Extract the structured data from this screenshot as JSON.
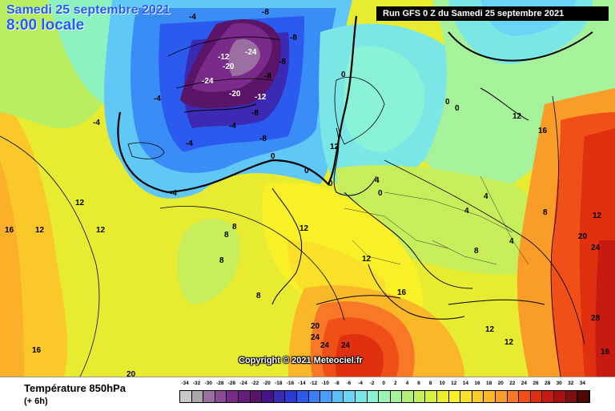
{
  "header": {
    "date_line": "Samedi 25 septembre 2021",
    "time_line": "8:00 locale",
    "run_info": "Run GFS 0 Z du Samedi 25 septembre 2021"
  },
  "copyright": "Copyright © 2021 Meteociel.fr",
  "footer": {
    "parameter_title": "Température 850hPa",
    "parameter_subtitle": "(+ 6h)"
  },
  "scale": {
    "labels": [
      "-34",
      "-32",
      "-30",
      "-28",
      "-26",
      "-24",
      "-22",
      "-20",
      "-18",
      "-16",
      "-14",
      "-12",
      "-10",
      "-8",
      "-6",
      "-4",
      "-2",
      "0",
      "2",
      "4",
      "6",
      "8",
      "10",
      "12",
      "14",
      "16",
      "18",
      "20",
      "22",
      "24",
      "26",
      "28",
      "30",
      "32",
      "34"
    ],
    "colors": [
      "#c8c8c8",
      "#a8a8a8",
      "#9a6ea0",
      "#8a4a96",
      "#7a2a8a",
      "#62207a",
      "#5a1468",
      "#46148a",
      "#3a2ab4",
      "#2a3ad2",
      "#2a5aee",
      "#3a7ef6",
      "#4a9efa",
      "#5ac0fa",
      "#6ad6f6",
      "#7ae6e6",
      "#8af2d6",
      "#9af6b6",
      "#a6f29a",
      "#b6ee7a",
      "#c6ee5a",
      "#d8f040",
      "#eaf030",
      "#faf028",
      "#fae028",
      "#facc28",
      "#fab828",
      "#fa9c28",
      "#f87828",
      "#f05018",
      "#e03010",
      "#c81a10",
      "#a81010",
      "#801010",
      "#500808"
    ],
    "selected_unit": "°C"
  },
  "map_labels": [
    {
      "text": "-4"
    },
    {
      "text": "-8"
    },
    {
      "text": "-8"
    },
    {
      "text": "-8"
    },
    {
      "text": "-12"
    },
    {
      "text": "-20"
    },
    {
      "text": "-24"
    },
    {
      "text": "-24"
    },
    {
      "text": "-20"
    },
    {
      "text": "-12"
    },
    {
      "text": "-8"
    },
    {
      "text": "-8"
    },
    {
      "text": "-4"
    },
    {
      "text": "-4"
    },
    {
      "text": "-4"
    },
    {
      "text": "-4"
    },
    {
      "text": "-8"
    },
    {
      "text": "0"
    },
    {
      "text": "0"
    },
    {
      "text": "0"
    },
    {
      "text": "0"
    },
    {
      "text": "0"
    },
    {
      "text": "0"
    },
    {
      "text": "0"
    },
    {
      "text": "-4"
    },
    {
      "text": "4"
    },
    {
      "text": "4"
    },
    {
      "text": "4"
    },
    {
      "text": "4"
    },
    {
      "text": "8"
    },
    {
      "text": "8"
    },
    {
      "text": "8"
    },
    {
      "text": "8"
    },
    {
      "text": "12"
    },
    {
      "text": "12"
    },
    {
      "text": "12"
    },
    {
      "text": "12"
    },
    {
      "text": "12"
    },
    {
      "text": "16"
    },
    {
      "text": "16"
    },
    {
      "text": "16"
    },
    {
      "text": "20"
    },
    {
      "text": "20"
    },
    {
      "text": "24"
    },
    {
      "text": "24"
    },
    {
      "text": "24"
    },
    {
      "text": "28"
    },
    {
      "text": "16"
    },
    {
      "text": "20"
    },
    {
      "text": "24"
    },
    {
      "text": "12"
    },
    {
      "text": "12"
    },
    {
      "text": "8"
    },
    {
      "text": "8"
    },
    {
      "text": "12"
    },
    {
      "text": "16"
    },
    {
      "text": "12"
    },
    {
      "text": "12"
    }
  ]
}
